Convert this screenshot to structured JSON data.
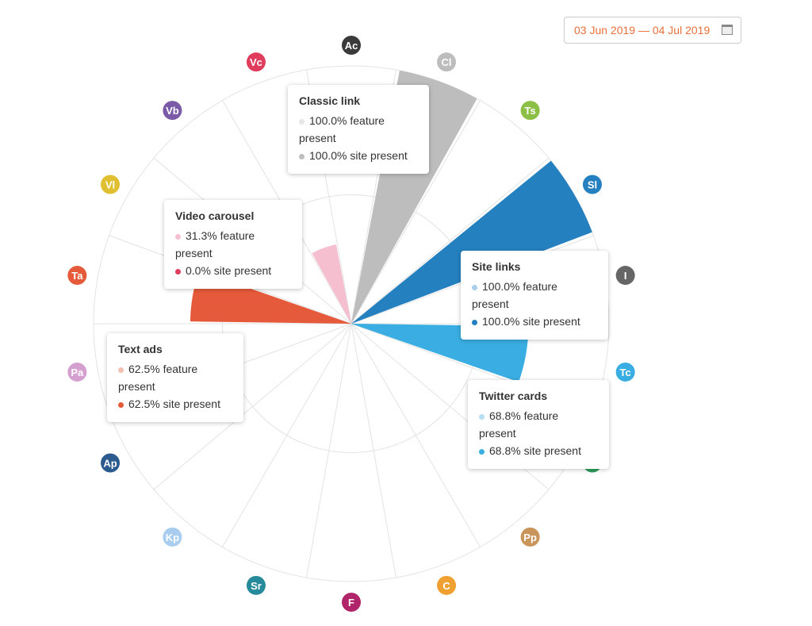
{
  "date_range": "03 Jun 2019 — 04 Jul 2019",
  "chart_data": {
    "type": "polar-area",
    "categories": [
      {
        "abbr": "Ac",
        "color": "#3a3a3a",
        "value": 0
      },
      {
        "abbr": "Cl",
        "name": "Classic link",
        "color": "#bdbdbd",
        "light": "#e6e6e6",
        "value": 100.0,
        "site": 100.0
      },
      {
        "abbr": "Ts",
        "color": "#8cbf45",
        "value": 0
      },
      {
        "abbr": "Sl",
        "name": "Site links",
        "color": "#2580c0",
        "light": "#a9cfee",
        "value": 100.0,
        "site": 100.0
      },
      {
        "abbr": "I",
        "color": "#666666",
        "value": 0
      },
      {
        "abbr": "Tc",
        "name": "Twitter cards",
        "color": "#3aaee2",
        "light": "#b6def4",
        "value": 68.8,
        "site": 68.8
      },
      {
        "abbr": "M",
        "color": "#2e9e5b",
        "value": 0
      },
      {
        "abbr": "Pp",
        "color": "#c9955a",
        "value": 0
      },
      {
        "abbr": "C",
        "color": "#f0a030",
        "value": 0
      },
      {
        "abbr": "F",
        "color": "#b0246a",
        "value": 0
      },
      {
        "abbr": "Sr",
        "color": "#268a9a",
        "value": 0
      },
      {
        "abbr": "Kp",
        "color": "#a8cdee",
        "value": 0
      },
      {
        "abbr": "Ap",
        "color": "#2b5a8f",
        "value": 0
      },
      {
        "abbr": "Pa",
        "color": "#d5a0d0",
        "value": 0
      },
      {
        "abbr": "Ta",
        "name": "Text ads",
        "color": "#e55a3a",
        "light": "#f4c0b0",
        "value": 62.5,
        "site": 62.5
      },
      {
        "abbr": "Vl",
        "color": "#e0c030",
        "value": 0
      },
      {
        "abbr": "Vb",
        "color": "#7b5ba8",
        "value": 0
      },
      {
        "abbr": "Vc",
        "name": "Video carousel",
        "color": "#e03c5c",
        "light": "#f5bfcf",
        "value": 31.3,
        "site": 0.0
      }
    ],
    "rmax": 100
  },
  "tooltips": {
    "cl": {
      "title": "Classic link",
      "feature": "100.0% feature present",
      "site": "100.0% site present"
    },
    "vc": {
      "title": "Video carousel",
      "feature": "31.3% feature present",
      "site": "0.0% site present"
    },
    "sl": {
      "title": "Site links",
      "feature": "100.0% feature present",
      "site": "100.0% site present"
    },
    "ta": {
      "title": "Text ads",
      "feature": "62.5% feature present",
      "site": "62.5% site present"
    },
    "tc": {
      "title": "Twitter cards",
      "feature": "68.8% feature present",
      "site": "68.8% site present"
    }
  }
}
